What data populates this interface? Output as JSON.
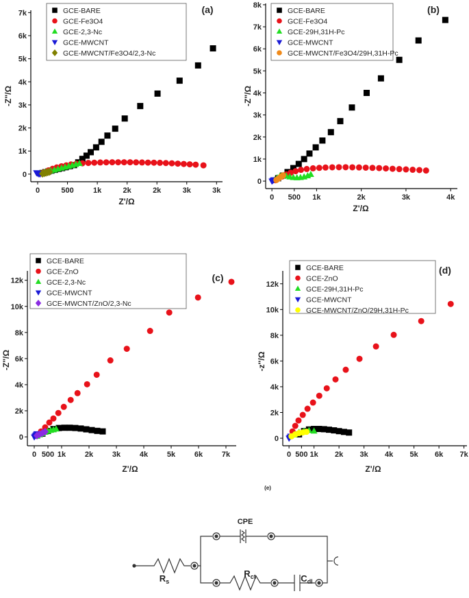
{
  "chart_data": [
    {
      "type": "scatter",
      "panel_label": "(a)",
      "xlabel": "Z'/Ω",
      "ylabel": "-Z''/Ω",
      "xlim": [
        -115,
        3100
      ],
      "ylim": [
        -330,
        7100
      ],
      "xticks": [
        0,
        500,
        {
          "value": 1000,
          "label": "1k"
        },
        {
          "value": 1500,
          "label": "2k"
        },
        {
          "value": 2000,
          "label": "2k"
        },
        {
          "value": 2500,
          "label": "3k"
        },
        {
          "value": 3000,
          "label": "3k"
        }
      ],
      "yticks": [
        0,
        {
          "value": 1000,
          "label": "1k"
        },
        {
          "value": 2000,
          "label": "2k"
        },
        {
          "value": 3000,
          "label": "3k"
        },
        {
          "value": 4000,
          "label": "4k"
        },
        {
          "value": 5000,
          "label": "5k"
        },
        {
          "value": 6000,
          "label": "6k"
        },
        {
          "value": 7000,
          "label": "7k"
        }
      ],
      "series": [
        {
          "name": "GCE-BARE",
          "color": "#000000",
          "marker": "square",
          "x": [
            80,
            130,
            180,
            230,
            290,
            350,
            410,
            470,
            540,
            610,
            680,
            750,
            820,
            890,
            980,
            1070,
            1170,
            1300,
            1460,
            1720,
            2010,
            2380,
            2690,
            2940
          ],
          "y": [
            50,
            85,
            115,
            150,
            185,
            225,
            260,
            300,
            345,
            390,
            510,
            660,
            800,
            950,
            1160,
            1400,
            1670,
            1970,
            2410,
            2950,
            3490,
            4050,
            4710,
            5450
          ]
        },
        {
          "name": "GCE-Fe3O4",
          "color": "#e8121a",
          "marker": "circle",
          "x": [
            60,
            120,
            180,
            250,
            320,
            400,
            480,
            560,
            650,
            750,
            850,
            950,
            1050,
            1150,
            1250,
            1350,
            1450,
            1550,
            1650,
            1750,
            1850,
            1950,
            2050,
            2150,
            2250,
            2350,
            2450,
            2550,
            2650,
            2780
          ],
          "y": [
            30,
            90,
            160,
            230,
            290,
            340,
            380,
            420,
            450,
            470,
            485,
            495,
            505,
            510,
            515,
            515,
            515,
            515,
            510,
            505,
            500,
            495,
            490,
            480,
            470,
            455,
            440,
            425,
            410,
            380
          ]
        },
        {
          "name": "GCE-2,3-Nc",
          "color": "#22dd22",
          "marker": "triangle-up",
          "x": [
            40,
            80,
            120,
            170,
            220,
            280,
            340,
            400,
            460,
            520,
            580,
            640,
            700
          ],
          "y": [
            20,
            50,
            80,
            110,
            140,
            180,
            220,
            260,
            300,
            340,
            380,
            420,
            460
          ]
        },
        {
          "name": "GCE-MWCNT",
          "color": "#1a1ad6",
          "marker": "triangle-down",
          "x": [
            -20,
            0,
            20,
            40
          ],
          "y": [
            60,
            30,
            10,
            0
          ]
        },
        {
          "name": "GCE-MWCNT/Fe3O4/2,3-Nc",
          "color": "#808000",
          "marker": "diamond",
          "x": [
            80,
            110,
            140,
            170,
            200
          ],
          "y": [
            20,
            40,
            60,
            80,
            100
          ]
        }
      ]
    },
    {
      "type": "scatter",
      "panel_label": "(b)",
      "xlabel": "Z'/Ω",
      "ylabel": "-Z''/Ω",
      "xlim": [
        -140,
        4150
      ],
      "ylim": [
        -340,
        8060
      ],
      "xticks": [
        0,
        500,
        {
          "value": 1000,
          "label": "1k"
        },
        {
          "value": 2000,
          "label": "2k"
        },
        {
          "value": 3000,
          "label": "3k"
        },
        {
          "value": 4000,
          "label": "4k"
        }
      ],
      "yticks": [
        0,
        {
          "value": 1000,
          "label": "1k"
        },
        {
          "value": 2000,
          "label": "2k"
        },
        {
          "value": 3000,
          "label": "3k"
        },
        {
          "value": 4000,
          "label": "4k"
        },
        {
          "value": 5000,
          "label": "5k"
        },
        {
          "value": 6000,
          "label": "6k"
        },
        {
          "value": 7000,
          "label": "7k"
        },
        {
          "value": 8000,
          "label": "8k"
        }
      ],
      "series": [
        {
          "name": "GCE-BARE",
          "color": "#000000",
          "marker": "square",
          "x": [
            140,
            250,
            350,
            480,
            600,
            720,
            840,
            980,
            1130,
            1320,
            1530,
            1790,
            2120,
            2440,
            2850,
            3280,
            3880
          ],
          "y": [
            130,
            250,
            410,
            590,
            780,
            1000,
            1250,
            1530,
            1840,
            2220,
            2720,
            3340,
            4000,
            4660,
            5500,
            6380,
            7310
          ]
        },
        {
          "name": "GCE-Fe3O4",
          "color": "#e8121a",
          "marker": "circle",
          "x": [
            80,
            150,
            230,
            320,
            420,
            530,
            650,
            780,
            920,
            1060,
            1200,
            1350,
            1500,
            1650,
            1800,
            1950,
            2100,
            2250,
            2400,
            2550,
            2700,
            2850,
            3000,
            3150,
            3300,
            3450
          ],
          "y": [
            40,
            120,
            210,
            300,
            380,
            450,
            510,
            550,
            580,
            600,
            615,
            625,
            630,
            630,
            625,
            620,
            610,
            600,
            590,
            575,
            560,
            545,
            530,
            515,
            500,
            480
          ]
        },
        {
          "name": "GCE-29H,31H-Pc",
          "color": "#22dd22",
          "marker": "triangle-up",
          "x": [
            60,
            120,
            180,
            250,
            320,
            400,
            480,
            560,
            640,
            720,
            800,
            870
          ],
          "y": [
            50,
            150,
            230,
            260,
            230,
            190,
            160,
            150,
            160,
            190,
            240,
            300
          ]
        },
        {
          "name": "GCE-MWCNT",
          "color": "#1a1ad6",
          "marker": "triangle-down",
          "x": [
            0,
            20,
            40
          ],
          "y": [
            0,
            30,
            60
          ]
        },
        {
          "name": "GCE-MWCNT/Fe3O4/29H,31H-Pc",
          "color": "#f08a1a",
          "marker": "circle",
          "x": [
            100,
            150,
            200,
            250
          ],
          "y": [
            50,
            120,
            200,
            260
          ]
        }
      ]
    },
    {
      "type": "scatter",
      "panel_label": "(c)",
      "xlabel": "Z'/Ω",
      "ylabel": "-Z''/Ω",
      "xlim": [
        -250,
        7375
      ],
      "ylim": [
        -680,
        12720
      ],
      "xticks": [
        0,
        500,
        {
          "value": 1000,
          "label": "1k"
        },
        {
          "value": 2000,
          "label": "2k"
        },
        {
          "value": 3000,
          "label": "3k"
        },
        {
          "value": 4000,
          "label": "4k"
        },
        {
          "value": 5000,
          "label": "5k"
        },
        {
          "value": 6000,
          "label": "6k"
        },
        {
          "value": 7000,
          "label": "7k"
        }
      ],
      "yticks": [
        0,
        {
          "value": 2000,
          "label": "2k"
        },
        {
          "value": 4000,
          "label": "4k"
        },
        {
          "value": 6000,
          "label": "6k"
        },
        {
          "value": 8000,
          "label": "8k"
        },
        {
          "value": 10000,
          "label": "10k"
        },
        {
          "value": 12000,
          "label": "12k"
        }
      ],
      "series": [
        {
          "name": "GCE-BARE",
          "color": "#000000",
          "marker": "square",
          "x": [
            300,
            500,
            700,
            900,
            1100,
            1300,
            1500,
            1700,
            1900,
            2100,
            2300,
            2500
          ],
          "y": [
            250,
            450,
            600,
            680,
            700,
            700,
            680,
            640,
            580,
            520,
            460,
            420
          ]
        },
        {
          "name": "GCE-ZnO",
          "color": "#e8121a",
          "marker": "circle",
          "x": [
            130,
            250,
            400,
            550,
            700,
            880,
            1080,
            1330,
            1580,
            1930,
            2280,
            2780,
            3380,
            4230,
            4930,
            5980,
            7200
          ],
          "y": [
            160,
            420,
            730,
            1100,
            1410,
            1830,
            2300,
            2830,
            3350,
            4030,
            4760,
            5860,
            6750,
            8120,
            9530,
            10680,
            11880
          ]
        },
        {
          "name": "GCE-2,3-Nc",
          "color": "#22dd22",
          "marker": "triangle-up",
          "x": [
            100,
            200,
            300,
            400,
            500,
            600,
            700,
            800
          ],
          "y": [
            50,
            150,
            250,
            350,
            430,
            500,
            550,
            600
          ]
        },
        {
          "name": "GCE-MWCNT",
          "color": "#1a1ad6",
          "marker": "triangle-down",
          "x": [
            0,
            30,
            60,
            90
          ],
          "y": [
            0,
            80,
            160,
            240
          ]
        },
        {
          "name": "GCE-MWCNT/ZnO/2,3-Nc",
          "color": "#8a2be2",
          "marker": "diamond",
          "x": [
            100,
            200,
            300,
            400
          ],
          "y": [
            100,
            200,
            300,
            400
          ]
        }
      ]
    },
    {
      "type": "scatter",
      "panel_label": "(d)",
      "xlabel": "Z'/Ω",
      "ylabel": "-z''/Ω",
      "xlim": [
        -250,
        7120
      ],
      "ylim": [
        -585,
        13000
      ],
      "xticks": [
        0,
        500,
        {
          "value": 1000,
          "label": "1k"
        },
        {
          "value": 2000,
          "label": "2k"
        },
        {
          "value": 3000,
          "label": "3k"
        },
        {
          "value": 4000,
          "label": "4k"
        },
        {
          "value": 5000,
          "label": "5k"
        },
        {
          "value": 6000,
          "label": "6k"
        },
        {
          "value": 7000,
          "label": "7k"
        }
      ],
      "yticks": [
        0,
        {
          "value": 2000,
          "label": "2k"
        },
        {
          "value": 4000,
          "label": "4k"
        },
        {
          "value": 6000,
          "label": "6k"
        },
        {
          "value": 8000,
          "label": "8k"
        },
        {
          "value": 10000,
          "label": "10k"
        },
        {
          "value": 12000,
          "label": "12k"
        }
      ],
      "series": [
        {
          "name": "GCE-BARE",
          "color": "#000000",
          "marker": "square",
          "x": [
            400,
            600,
            800,
            1000,
            1200,
            1400,
            1600,
            1800,
            2000,
            2200,
            2400
          ],
          "y": [
            300,
            550,
            680,
            720,
            720,
            700,
            660,
            610,
            550,
            490,
            440
          ]
        },
        {
          "name": "GCE-ZnO",
          "color": "#e8121a",
          "marker": "circle",
          "x": [
            140,
            250,
            380,
            550,
            740,
            960,
            1210,
            1510,
            1860,
            2270,
            2820,
            3480,
            4190,
            5290,
            6470
          ],
          "y": [
            530,
            960,
            1380,
            1810,
            2290,
            2770,
            3300,
            3880,
            4570,
            5320,
            6170,
            7130,
            8030,
            9100,
            10430
          ]
        },
        {
          "name": "GCE-29H,31H-Pc",
          "color": "#22dd22",
          "marker": "triangle-up",
          "x": [
            200,
            400,
            600,
            800,
            1000
          ],
          "y": [
            250,
            450,
            550,
            600,
            550
          ]
        },
        {
          "name": "GCE-MWCNT",
          "color": "#1a1ad6",
          "marker": "triangle-down",
          "x": [
            0,
            30,
            60
          ],
          "y": [
            0,
            80,
            160
          ]
        },
        {
          "name": "GCE-MWCNT/ZnO/29H,31H-Pc",
          "color": "#ffff00",
          "marker": "circle",
          "x": [
            100,
            250,
            400,
            550,
            700
          ],
          "y": [
            150,
            300,
            400,
            450,
            500
          ]
        }
      ]
    }
  ],
  "circuit": {
    "label": "(e)",
    "cpe": "CPE",
    "rs": {
      "main": "R",
      "sub": "s"
    },
    "rct": {
      "main": "R",
      "sub": "ct"
    },
    "cdl": {
      "main": "C",
      "sub": "dl"
    }
  }
}
